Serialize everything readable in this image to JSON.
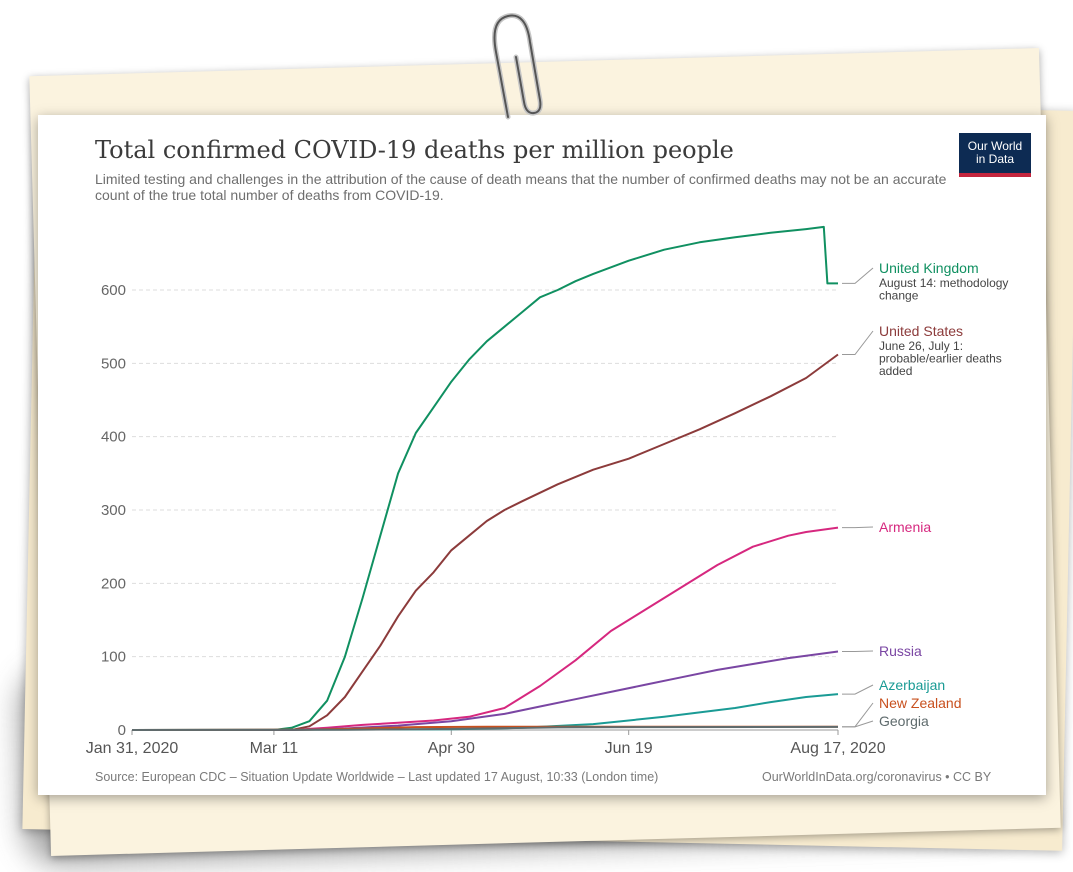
{
  "title": "Total confirmed COVID-19 deaths per million people",
  "subtitle": "Limited testing and challenges in the attribution of the cause of death means that the number of confirmed deaths may not be an accurate count of the true total number of deaths from COVID-19.",
  "logo": {
    "line1": "Our World",
    "line2": "in Data"
  },
  "source": "Source: European CDC – Situation Update Worldwide – Last updated 17 August, 10:33 (London time)",
  "credit": "OurWorldInData.org/coronavirus • CC BY",
  "colors": {
    "accent": "#c4253d",
    "logo_bg": "#0d2b53"
  },
  "chart_data": {
    "type": "line",
    "title": "Total confirmed COVID-19 deaths per million people",
    "x_ticks": [
      "Jan 31, 2020",
      "Mar 11",
      "Apr 30",
      "Jun 19",
      "Aug 17, 2020"
    ],
    "x_tick_days": [
      0,
      40,
      90,
      140,
      199
    ],
    "y_ticks": [
      0,
      100,
      200,
      300,
      400,
      500,
      600
    ],
    "ylim": [
      0,
      690
    ],
    "xlim": [
      0,
      199
    ],
    "grid": true,
    "legend_placement": "right end labels",
    "series": [
      {
        "name": "United Kingdom",
        "note": "August 14: methodology change",
        "color": "#109061",
        "x": [
          0,
          40,
          45,
          50,
          55,
          60,
          65,
          70,
          75,
          80,
          85,
          90,
          95,
          100,
          105,
          110,
          115,
          120,
          125,
          130,
          140,
          150,
          160,
          170,
          180,
          190,
          195,
          196,
          199
        ],
        "y": [
          0,
          0,
          3,
          12,
          40,
          100,
          180,
          265,
          350,
          405,
          440,
          475,
          505,
          530,
          550,
          570,
          590,
          600,
          612,
          622,
          640,
          655,
          665,
          672,
          678,
          683,
          686,
          609,
          609
        ]
      },
      {
        "name": "United States",
        "note": "June 26, July 1: probable/earlier deaths added",
        "color": "#8c3b3b",
        "x": [
          0,
          45,
          50,
          55,
          60,
          65,
          70,
          75,
          80,
          85,
          90,
          95,
          100,
          105,
          110,
          120,
          130,
          140,
          150,
          160,
          170,
          180,
          190,
          199
        ],
        "y": [
          0,
          0,
          5,
          20,
          45,
          80,
          115,
          155,
          190,
          215,
          245,
          265,
          285,
          300,
          312,
          335,
          355,
          370,
          390,
          410,
          432,
          455,
          480,
          512
        ]
      },
      {
        "name": "Armenia",
        "color": "#d6287f",
        "x": [
          0,
          45,
          55,
          65,
          75,
          85,
          95,
          105,
          115,
          125,
          135,
          145,
          155,
          165,
          175,
          185,
          190,
          199
        ],
        "y": [
          0,
          0,
          3,
          7,
          10,
          13,
          18,
          30,
          60,
          95,
          135,
          165,
          195,
          225,
          250,
          265,
          270,
          276
        ]
      },
      {
        "name": "Russia",
        "color": "#7a46a3",
        "x": [
          0,
          45,
          60,
          75,
          90,
          105,
          115,
          125,
          135,
          145,
          155,
          165,
          175,
          185,
          199
        ],
        "y": [
          0,
          0,
          2,
          6,
          12,
          22,
          32,
          42,
          52,
          62,
          72,
          82,
          90,
          98,
          107
        ]
      },
      {
        "name": "Azerbaijan",
        "color": "#1a9b95",
        "x": [
          0,
          90,
          110,
          130,
          150,
          170,
          180,
          190,
          199
        ],
        "y": [
          0,
          1,
          3,
          8,
          18,
          30,
          38,
          45,
          49
        ]
      },
      {
        "name": "New Zealand",
        "color": "#c8501e",
        "x": [
          0,
          50,
          65,
          80,
          100,
          199
        ],
        "y": [
          0,
          0.5,
          2,
          4,
          4.5,
          4.5
        ]
      },
      {
        "name": "Georgia",
        "color": "#5f6b6d",
        "x": [
          0,
          60,
          90,
          120,
          150,
          199
        ],
        "y": [
          0,
          0.3,
          1.5,
          3.5,
          4,
          4.2
        ]
      }
    ]
  }
}
